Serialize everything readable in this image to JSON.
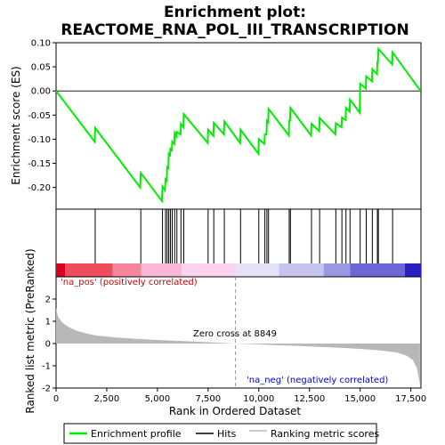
{
  "chart_data": {
    "type": "line",
    "title_line1": "Enrichment plot:",
    "title_line2": "REACTOME_RNA_POL_III_TRANSCRIPTION",
    "xlabel": "Rank in Ordered Dataset",
    "ylabel_top": "Enrichment score (ES)",
    "ylabel_bottom": "Ranked list metric (PreRanked)",
    "xlim": [
      0,
      18000
    ],
    "x_ticks": [
      0,
      2500,
      5000,
      7500,
      10000,
      12500,
      15000,
      17500
    ],
    "x_tick_labels": [
      "0",
      "2,500",
      "5,000",
      "7,500",
      "10,000",
      "12,500",
      "15,000",
      "17,500"
    ],
    "es_ylim": [
      -0.245,
      0.1
    ],
    "es_ticks": [
      -0.2,
      -0.15,
      -0.1,
      -0.05,
      0.0,
      0.05,
      0.1
    ],
    "es_tick_labels": [
      "-0.20",
      "-0.15",
      "-0.10",
      "-0.05",
      "0.00",
      "0.05",
      "0.10"
    ],
    "metric_ylim": [
      -2.0,
      3.0
    ],
    "metric_ticks": [
      -2,
      -1,
      0,
      1,
      2
    ],
    "metric_tick_labels": [
      "-2",
      "-1",
      "0",
      "1",
      "2"
    ],
    "hits": [
      1930,
      4180,
      5250,
      5400,
      5480,
      5560,
      5640,
      5730,
      5850,
      5960,
      6160,
      6300,
      7500,
      7780,
      8300,
      9100,
      10000,
      10300,
      10400,
      10480,
      11500,
      11560,
      12600,
      13000,
      13800,
      14100,
      14300,
      14500,
      15000,
      15300,
      15600,
      15850,
      15900,
      16600
    ],
    "es_curve": [
      [
        0,
        0.0
      ],
      [
        1900,
        -0.105
      ],
      [
        1930,
        -0.077
      ],
      [
        4150,
        -0.2
      ],
      [
        4180,
        -0.17
      ],
      [
        5220,
        -0.228
      ],
      [
        5250,
        -0.198
      ],
      [
        5370,
        -0.206
      ],
      [
        5400,
        -0.183
      ],
      [
        5460,
        -0.186
      ],
      [
        5480,
        -0.158
      ],
      [
        5540,
        -0.16
      ],
      [
        5560,
        -0.13
      ],
      [
        5620,
        -0.133
      ],
      [
        5640,
        -0.12
      ],
      [
        5710,
        -0.123
      ],
      [
        5730,
        -0.105
      ],
      [
        5830,
        -0.11
      ],
      [
        5850,
        -0.087
      ],
      [
        5940,
        -0.094
      ],
      [
        5960,
        -0.085
      ],
      [
        6140,
        -0.09
      ],
      [
        6160,
        -0.068
      ],
      [
        6280,
        -0.075
      ],
      [
        6300,
        -0.048
      ],
      [
        7480,
        -0.108
      ],
      [
        7500,
        -0.08
      ],
      [
        7760,
        -0.093
      ],
      [
        7780,
        -0.066
      ],
      [
        8280,
        -0.09
      ],
      [
        8300,
        -0.063
      ],
      [
        9080,
        -0.108
      ],
      [
        9100,
        -0.08
      ],
      [
        9980,
        -0.13
      ],
      [
        10000,
        -0.1
      ],
      [
        10280,
        -0.11
      ],
      [
        10300,
        -0.09
      ],
      [
        10380,
        -0.09
      ],
      [
        10400,
        -0.062
      ],
      [
        10460,
        -0.065
      ],
      [
        10480,
        -0.037
      ],
      [
        11480,
        -0.092
      ],
      [
        11500,
        -0.062
      ],
      [
        11540,
        -0.062
      ],
      [
        11560,
        -0.035
      ],
      [
        12580,
        -0.092
      ],
      [
        12600,
        -0.068
      ],
      [
        12980,
        -0.083
      ],
      [
        13000,
        -0.056
      ],
      [
        13780,
        -0.09
      ],
      [
        13800,
        -0.067
      ],
      [
        14080,
        -0.075
      ],
      [
        14100,
        -0.055
      ],
      [
        14280,
        -0.06
      ],
      [
        14300,
        -0.035
      ],
      [
        14480,
        -0.043
      ],
      [
        14500,
        -0.018
      ],
      [
        14980,
        -0.045
      ],
      [
        15000,
        0.015
      ],
      [
        15280,
        0.005
      ],
      [
        15300,
        0.03
      ],
      [
        15580,
        0.02
      ],
      [
        15600,
        0.045
      ],
      [
        15830,
        0.035
      ],
      [
        15850,
        0.06
      ],
      [
        15880,
        0.06
      ],
      [
        15900,
        0.087
      ],
      [
        16580,
        0.055
      ],
      [
        16600,
        0.08
      ],
      [
        17980,
        0.0
      ]
    ],
    "metric_profile": [
      [
        0,
        1.6
      ],
      [
        100,
        1.2
      ],
      [
        300,
        0.95
      ],
      [
        600,
        0.75
      ],
      [
        1000,
        0.58
      ],
      [
        1500,
        0.45
      ],
      [
        2000,
        0.36
      ],
      [
        3000,
        0.27
      ],
      [
        4000,
        0.21
      ],
      [
        5000,
        0.16
      ],
      [
        6000,
        0.12
      ],
      [
        7000,
        0.08
      ],
      [
        8000,
        0.04
      ],
      [
        8849,
        0.0
      ],
      [
        10000,
        -0.04
      ],
      [
        11000,
        -0.08
      ],
      [
        12000,
        -0.11
      ],
      [
        13000,
        -0.15
      ],
      [
        14000,
        -0.19
      ],
      [
        15000,
        -0.24
      ],
      [
        16000,
        -0.31
      ],
      [
        16800,
        -0.4
      ],
      [
        17300,
        -0.55
      ],
      [
        17600,
        -0.75
      ],
      [
        17800,
        -1.1
      ],
      [
        17950,
        -1.85
      ]
    ],
    "heat_band": [
      {
        "from": 0,
        "to": 450,
        "color": "#d8001c"
      },
      {
        "from": 450,
        "to": 2800,
        "color": "#ef4c5c"
      },
      {
        "from": 2800,
        "to": 4200,
        "color": "#f6849a"
      },
      {
        "from": 4200,
        "to": 6200,
        "color": "#fbb6d6"
      },
      {
        "from": 6200,
        "to": 8900,
        "color": "#fcd3ec"
      },
      {
        "from": 8900,
        "to": 11000,
        "color": "#e3e2f6"
      },
      {
        "from": 11000,
        "to": 13200,
        "color": "#c6c4ef"
      },
      {
        "from": 13200,
        "to": 14500,
        "color": "#9a97e3"
      },
      {
        "from": 14500,
        "to": 17200,
        "color": "#6b67d6"
      },
      {
        "from": 17200,
        "to": 18000,
        "color": "#2a1fc0"
      }
    ],
    "zero_cross_rank": 8849,
    "zero_cross_label": "Zero cross at 8849",
    "pos_label": "'na_pos' (positively correlated)",
    "neg_label": "'na_neg' (negatively correlated)",
    "legend": [
      "Enrichment profile",
      "Hits",
      "Ranking metric scores"
    ],
    "colors": {
      "es_line": "#00ee00",
      "hits": "#000000",
      "metric_fill": "#b8b8b8",
      "pos_text": "#cc0000",
      "neg_text": "#0000cc",
      "zero_line": "#999999"
    }
  }
}
